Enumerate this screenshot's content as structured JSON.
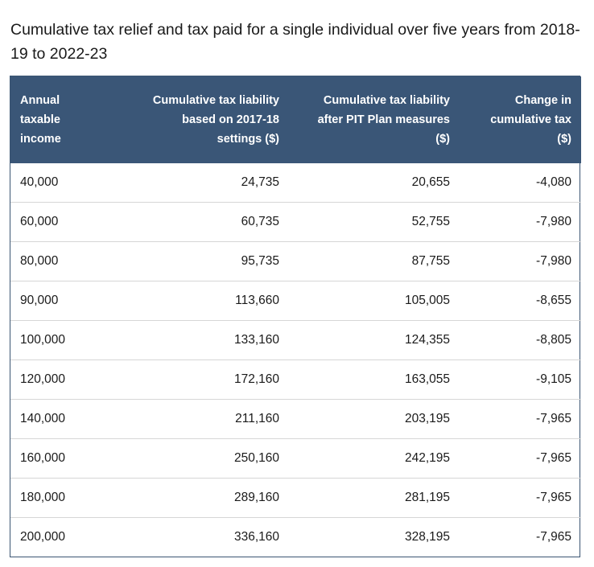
{
  "caption": "Cumulative tax relief and tax paid for a single individual over five years from 2018-19 to 2022-23",
  "table": {
    "headers": [
      [
        "Annual",
        "taxable",
        "income"
      ],
      [
        "Cumulative tax liability",
        "based on 2017-18",
        "settings ($)"
      ],
      [
        "Cumulative tax liability",
        "after PIT Plan measures",
        "($)"
      ],
      [
        "Change in",
        "cumulative tax",
        "($)"
      ]
    ],
    "rows": [
      [
        "40,000",
        "24,735",
        "20,655",
        "-4,080"
      ],
      [
        "60,000",
        "60,735",
        "52,755",
        "-7,980"
      ],
      [
        "80,000",
        "95,735",
        "87,755",
        "-7,980"
      ],
      [
        "90,000",
        "113,660",
        "105,005",
        "-8,655"
      ],
      [
        "100,000",
        "133,160",
        "124,355",
        "-8,805"
      ],
      [
        "120,000",
        "172,160",
        "163,055",
        "-9,105"
      ],
      [
        "140,000",
        "211,160",
        "203,195",
        "-7,965"
      ],
      [
        "160,000",
        "250,160",
        "242,195",
        "-7,965"
      ],
      [
        "180,000",
        "289,160",
        "281,195",
        "-7,965"
      ],
      [
        "200,000",
        "336,160",
        "328,195",
        "-7,965"
      ]
    ]
  },
  "colors": {
    "header_bg": "#3a5677",
    "header_text": "#ffffff",
    "row_divider": "#d6d6d6"
  }
}
